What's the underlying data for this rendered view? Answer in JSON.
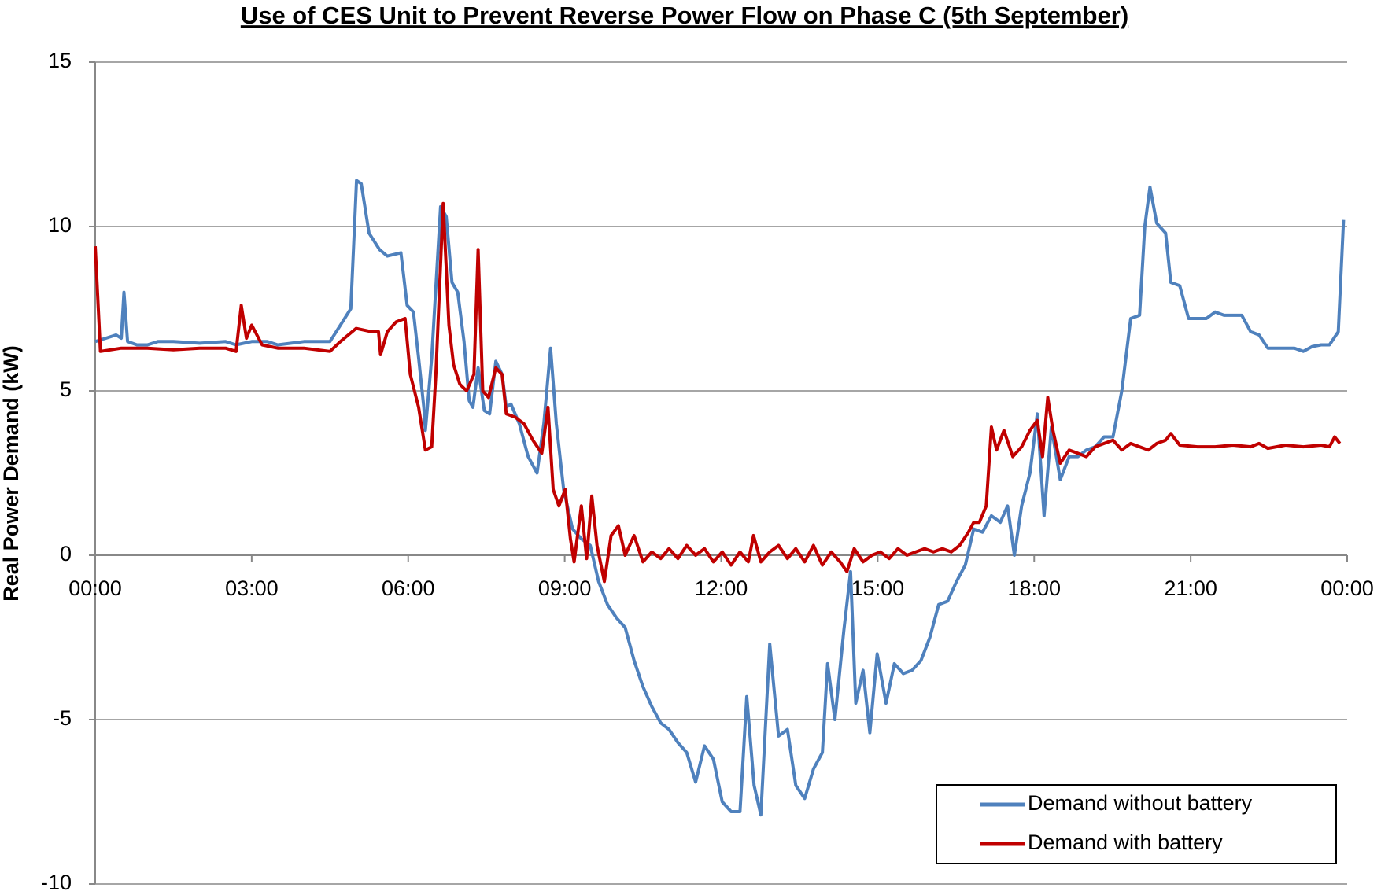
{
  "chart_data": {
    "type": "line",
    "title": "Use of CES Unit to Prevent Reverse Power Flow on Phase C (5th September)",
    "y_label": "Real Power Demand (kW)",
    "xlim": [
      0,
      24
    ],
    "xticks": [
      {
        "value": 0,
        "label": "00:00"
      },
      {
        "value": 3,
        "label": "03:00"
      },
      {
        "value": 6,
        "label": "06:00"
      },
      {
        "value": 9,
        "label": "09:00"
      },
      {
        "value": 12,
        "label": "12:00"
      },
      {
        "value": 15,
        "label": "15:00"
      },
      {
        "value": 18,
        "label": "18:00"
      },
      {
        "value": 21,
        "label": "21:00"
      },
      {
        "value": 24,
        "label": "00:00"
      }
    ],
    "ylim": [
      -10,
      15
    ],
    "yticks": [
      -10,
      -5,
      0,
      5,
      10,
      15
    ],
    "grid": true,
    "legend": "lower right",
    "series": [
      {
        "name": "Demand without battery",
        "color": "#4f81bd",
        "x": [
          0,
          0.2,
          0.4,
          0.5,
          0.55,
          0.62,
          0.8,
          1.0,
          1.2,
          1.5,
          2.0,
          2.5,
          2.7,
          3.0,
          3.3,
          3.5,
          4.0,
          4.5,
          4.7,
          4.9,
          4.97,
          5.01,
          5.1,
          5.25,
          5.45,
          5.6,
          5.86,
          5.98,
          6.1,
          6.2,
          6.3,
          6.33,
          6.45,
          6.62,
          6.73,
          6.84,
          6.95,
          7.07,
          7.17,
          7.24,
          7.34,
          7.46,
          7.56,
          7.68,
          7.8,
          7.88,
          7.97,
          8.13,
          8.3,
          8.47,
          8.6,
          8.73,
          8.84,
          8.98,
          9.15,
          9.32,
          9.49,
          9.65,
          9.82,
          9.99,
          10.16,
          10.33,
          10.5,
          10.67,
          10.84,
          11.0,
          11.17,
          11.34,
          11.51,
          11.68,
          11.85,
          12.02,
          12.19,
          12.36,
          12.49,
          12.63,
          12.76,
          12.93,
          13.1,
          13.27,
          13.43,
          13.6,
          13.77,
          13.94,
          14.04,
          14.18,
          14.35,
          14.48,
          14.58,
          14.72,
          14.85,
          14.99,
          15.16,
          15.32,
          15.49,
          15.66,
          15.83,
          16.0,
          16.17,
          16.34,
          16.51,
          16.68,
          16.84,
          17.01,
          17.18,
          17.35,
          17.49,
          17.62,
          17.76,
          17.92,
          18.06,
          18.19,
          18.33,
          18.5,
          18.67,
          18.84,
          19.0,
          19.17,
          19.34,
          19.51,
          19.68,
          19.85,
          20.02,
          20.12,
          20.22,
          20.35,
          20.52,
          20.62,
          20.79,
          20.96,
          21.13,
          21.3,
          21.47,
          21.64,
          21.81,
          21.98,
          22.15,
          22.31,
          22.48,
          22.65,
          22.82,
          22.99,
          23.16,
          23.33,
          23.5,
          23.66,
          23.83,
          23.93
        ],
        "values": [
          6.5,
          6.6,
          6.7,
          6.6,
          8.0,
          6.5,
          6.4,
          6.4,
          6.5,
          6.5,
          6.45,
          6.5,
          6.4,
          6.5,
          6.5,
          6.4,
          6.5,
          6.5,
          7.0,
          7.5,
          10.0,
          11.4,
          11.3,
          9.8,
          9.3,
          9.1,
          9.2,
          7.6,
          7.4,
          6.0,
          4.5,
          3.8,
          6.0,
          10.6,
          10.3,
          8.3,
          8.0,
          6.5,
          4.7,
          4.5,
          5.7,
          4.4,
          4.3,
          5.9,
          5.5,
          4.5,
          4.6,
          4.0,
          3.0,
          2.5,
          4.0,
          6.3,
          4.0,
          2.0,
          0.8,
          0.5,
          0.3,
          -0.8,
          -1.5,
          -1.9,
          -2.2,
          -3.2,
          -4.0,
          -4.6,
          -5.1,
          -5.3,
          -5.7,
          -6.0,
          -6.9,
          -5.8,
          -6.2,
          -7.5,
          -7.8,
          -7.8,
          -4.3,
          -7.0,
          -7.9,
          -2.7,
          -5.5,
          -5.3,
          -7.0,
          -7.4,
          -6.5,
          -6.0,
          -3.3,
          -5.0,
          -2.3,
          -0.5,
          -4.5,
          -3.5,
          -5.4,
          -3.0,
          -4.5,
          -3.3,
          -3.6,
          -3.5,
          -3.2,
          -2.5,
          -1.5,
          -1.4,
          -0.8,
          -0.3,
          0.8,
          0.7,
          1.2,
          1.0,
          1.5,
          0.0,
          1.5,
          2.5,
          4.3,
          1.2,
          3.9,
          2.3,
          3.0,
          3.0,
          3.2,
          3.3,
          3.6,
          3.6,
          5.0,
          7.2,
          7.3,
          10.0,
          11.2,
          10.1,
          9.8,
          8.3,
          8.2,
          7.2,
          7.2,
          7.2,
          7.4,
          7.3,
          7.3,
          7.3,
          6.8,
          6.7,
          6.3,
          6.3,
          6.3,
          6.3,
          6.2,
          6.35,
          6.4,
          6.4,
          6.8,
          10.2
        ]
      },
      {
        "name": "Demand with battery",
        "color": "#c00000",
        "x": [
          0,
          0.1,
          0.5,
          1.0,
          1.5,
          2.0,
          2.5,
          2.7,
          2.8,
          2.9,
          3.0,
          3.2,
          3.5,
          4.0,
          4.5,
          4.7,
          5.0,
          5.3,
          5.43,
          5.47,
          5.6,
          5.77,
          5.94,
          6.04,
          6.2,
          6.33,
          6.45,
          6.53,
          6.67,
          6.78,
          6.87,
          6.99,
          7.12,
          7.26,
          7.34,
          7.43,
          7.54,
          7.68,
          7.8,
          7.88,
          8.05,
          8.22,
          8.39,
          8.56,
          8.68,
          8.78,
          8.89,
          9.01,
          9.11,
          9.18,
          9.32,
          9.42,
          9.52,
          9.62,
          9.76,
          9.89,
          10.03,
          10.16,
          10.33,
          10.5,
          10.67,
          10.84,
          11.0,
          11.17,
          11.34,
          11.51,
          11.68,
          11.85,
          12.02,
          12.19,
          12.36,
          12.52,
          12.62,
          12.76,
          12.93,
          13.1,
          13.27,
          13.43,
          13.6,
          13.77,
          13.94,
          14.11,
          14.28,
          14.41,
          14.55,
          14.72,
          14.89,
          15.05,
          15.22,
          15.39,
          15.56,
          15.73,
          15.9,
          16.07,
          16.24,
          16.41,
          16.57,
          16.74,
          16.84,
          16.95,
          17.08,
          17.18,
          17.28,
          17.42,
          17.59,
          17.76,
          17.92,
          18.06,
          18.16,
          18.26,
          18.36,
          18.5,
          18.67,
          18.84,
          19.0,
          19.17,
          19.34,
          19.51,
          19.68,
          19.85,
          20.02,
          20.19,
          20.35,
          20.52,
          20.62,
          20.79,
          21.13,
          21.47,
          21.81,
          22.15,
          22.31,
          22.48,
          22.82,
          23.16,
          23.5,
          23.66,
          23.76,
          23.86
        ],
        "values": [
          9.4,
          6.2,
          6.3,
          6.3,
          6.25,
          6.3,
          6.3,
          6.2,
          7.6,
          6.6,
          7.0,
          6.4,
          6.3,
          6.3,
          6.2,
          6.5,
          6.9,
          6.8,
          6.8,
          6.1,
          6.8,
          7.1,
          7.2,
          5.5,
          4.5,
          3.2,
          3.3,
          5.5,
          10.7,
          7.0,
          5.8,
          5.2,
          5.0,
          5.5,
          9.3,
          5.0,
          4.8,
          5.7,
          5.5,
          4.3,
          4.2,
          4.0,
          3.5,
          3.1,
          4.5,
          2.0,
          1.5,
          2.0,
          0.5,
          -0.2,
          1.5,
          -0.1,
          1.8,
          0.3,
          -0.8,
          0.6,
          0.9,
          0.0,
          0.6,
          -0.2,
          0.1,
          -0.1,
          0.2,
          -0.1,
          0.3,
          0.0,
          0.2,
          -0.2,
          0.1,
          -0.3,
          0.1,
          -0.2,
          0.6,
          -0.2,
          0.1,
          0.3,
          -0.1,
          0.2,
          -0.2,
          0.3,
          -0.3,
          0.1,
          -0.2,
          -0.5,
          0.2,
          -0.2,
          0.0,
          0.1,
          -0.1,
          0.2,
          0.0,
          0.1,
          0.2,
          0.1,
          0.2,
          0.1,
          0.3,
          0.7,
          1.0,
          1.0,
          1.5,
          3.9,
          3.2,
          3.8,
          3.0,
          3.3,
          3.8,
          4.1,
          3.0,
          4.8,
          3.8,
          2.8,
          3.2,
          3.1,
          3.0,
          3.3,
          3.4,
          3.5,
          3.2,
          3.4,
          3.3,
          3.2,
          3.4,
          3.5,
          3.7,
          3.35,
          3.3,
          3.3,
          3.35,
          3.3,
          3.4,
          3.25,
          3.35,
          3.3,
          3.35,
          3.3,
          3.6,
          3.4
        ]
      }
    ]
  }
}
